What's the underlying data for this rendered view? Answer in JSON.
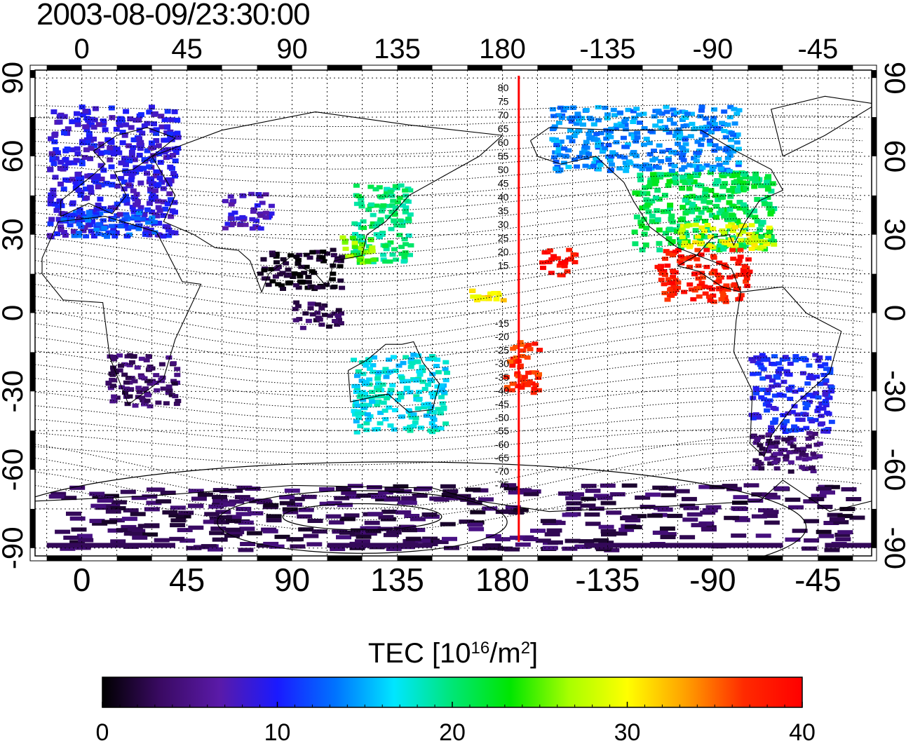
{
  "timestamp": "2003-08-09/23:30:00",
  "map": {
    "projection": "equirectangular",
    "lon_range": [
      -20,
      338
    ],
    "lat_range": [
      -93,
      93
    ],
    "lon_ticks": [
      0,
      45,
      90,
      135,
      180,
      225,
      270,
      315
    ],
    "lon_tick_labels": [
      "0",
      "45",
      "90",
      "135",
      "180",
      "-135",
      "-90",
      "-45"
    ],
    "lat_ticks": [
      90,
      60,
      30,
      0,
      -30,
      -60,
      -90
    ],
    "lat_tick_labels": [
      "90",
      "60",
      "30",
      "0",
      "-30",
      "-60",
      "-90"
    ],
    "grid_spacing_deg": 15,
    "meridian_marker_lon": 187,
    "magnetic_latitude_labels_north": [
      "80",
      "75",
      "70",
      "65",
      "60",
      "55",
      "50",
      "45",
      "40",
      "35",
      "30",
      "25",
      "20",
      "15"
    ],
    "magnetic_latitude_labels_south": [
      "-15",
      "-20",
      "-25",
      "-30",
      "-35",
      "-40",
      "-45",
      "-50",
      "-55",
      "-60",
      "-65",
      "-70",
      "-75"
    ]
  },
  "colorbar": {
    "title_main": "TEC  [10",
    "title_sup1": "16",
    "title_mid": "/m",
    "title_sup2": "2",
    "title_end": "]",
    "min": 0,
    "max": 40,
    "tick_values": [
      0,
      10,
      20,
      30,
      40
    ],
    "tick_labels": [
      "0",
      "10",
      "20",
      "30",
      "40"
    ],
    "colormap": [
      "#000000",
      "#3a0a63",
      "#5a1aa8",
      "#1a1aff",
      "#0073ff",
      "#00e6ff",
      "#00e676",
      "#00e600",
      "#a8ff00",
      "#ffff00",
      "#ffa000",
      "#ff2a00",
      "#ff0000"
    ]
  },
  "chart_data": {
    "type": "heatmap",
    "quantity": "TEC",
    "regions": [
      {
        "lon": [
          -15,
          40
        ],
        "lat": [
          30,
          80
        ],
        "tec": 9
      },
      {
        "lon": [
          -10,
          30
        ],
        "lat": [
          30,
          40
        ],
        "tec": 12
      },
      {
        "lon": [
          60,
          80
        ],
        "lat": [
          33,
          47
        ],
        "tec": 8
      },
      {
        "lon": [
          115,
          140
        ],
        "lat": [
          20,
          50
        ],
        "tec": 20
      },
      {
        "lon": [
          110,
          125
        ],
        "lat": [
          20,
          30
        ],
        "tec": 26
      },
      {
        "lon": [
          235,
          295
        ],
        "lat": [
          25,
          55
        ],
        "tec": 21
      },
      {
        "lon": [
          255,
          295
        ],
        "lat": [
          25,
          35
        ],
        "tec": 29
      },
      {
        "lon": [
          245,
          285
        ],
        "lat": [
          5,
          25
        ],
        "tec": 38
      },
      {
        "lon": [
          195,
          210
        ],
        "lat": [
          15,
          25
        ],
        "tec": 39
      },
      {
        "lon": [
          180,
          195
        ],
        "lat": [
          -30,
          -10
        ],
        "tec": 37
      },
      {
        "lon": [
          165,
          180
        ],
        "lat": [
          10,
          5
        ],
        "tec": 31
      },
      {
        "lon": [
          200,
          280
        ],
        "lat": [
          55,
          80
        ],
        "tec": 14
      },
      {
        "lon": [
          115,
          155
        ],
        "lat": [
          -45,
          -15
        ],
        "tec": 17
      },
      {
        "lon": [
          10,
          40
        ],
        "lat": [
          -35,
          -15
        ],
        "tec": 4
      },
      {
        "lon": [
          285,
          320
        ],
        "lat": [
          -45,
          -15
        ],
        "tec": 10
      },
      {
        "lon": [
          285,
          315
        ],
        "lat": [
          -60,
          -45
        ],
        "tec": 4
      },
      {
        "lon": [
          -15,
          330
        ],
        "lat": [
          -90,
          -65
        ],
        "tec": 3
      },
      {
        "lon": [
          75,
          110
        ],
        "lat": [
          10,
          25
        ],
        "tec": 1
      },
      {
        "lon": [
          90,
          110
        ],
        "lat": [
          -5,
          5
        ],
        "tec": 3
      }
    ]
  }
}
